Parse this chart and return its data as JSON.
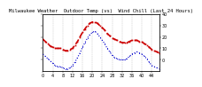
{
  "title": "Milwaukee Weather  Outdoor Temp (vs)  Wind Chill (Last 24 Hours)",
  "temp_color": "#cc0000",
  "windchill_color": "#0000cc",
  "background_color": "#ffffff",
  "plot_bg": "#ffffff",
  "ylim": [
    -10,
    40
  ],
  "yticks": [
    0,
    10,
    20,
    30,
    40
  ],
  "num_points": 48,
  "temp_values": [
    18,
    16,
    14,
    12,
    11,
    10,
    10,
    10,
    9,
    8,
    8,
    9,
    10,
    13,
    16,
    20,
    24,
    27,
    30,
    32,
    33,
    33,
    32,
    30,
    28,
    26,
    23,
    21,
    19,
    18,
    17,
    16,
    15,
    15,
    15,
    16,
    17,
    17,
    17,
    16,
    16,
    14,
    13,
    11,
    9,
    8,
    7,
    6
  ],
  "wc_values": [
    5,
    3,
    1,
    -1,
    -3,
    -5,
    -6,
    -6,
    -7,
    -8,
    -8,
    -7,
    -5,
    -2,
    2,
    6,
    11,
    15,
    19,
    22,
    24,
    25,
    23,
    20,
    17,
    14,
    10,
    7,
    4,
    2,
    1,
    0,
    0,
    0,
    1,
    3,
    5,
    6,
    7,
    6,
    5,
    3,
    1,
    -2,
    -5,
    -6,
    -7,
    -8
  ],
  "grid_color": "#bbbbbb",
  "title_fontsize": 4.0,
  "tick_fontsize": 3.5,
  "linewidth_temp": 1.2,
  "linewidth_wc": 0.8,
  "marker_temp": "s",
  "marker_wc": ".",
  "markersize_temp": 1.2,
  "markersize_wc": 1.2,
  "vline_positions": [
    4,
    8,
    12,
    16,
    20,
    24,
    28,
    32,
    36,
    40,
    44
  ]
}
